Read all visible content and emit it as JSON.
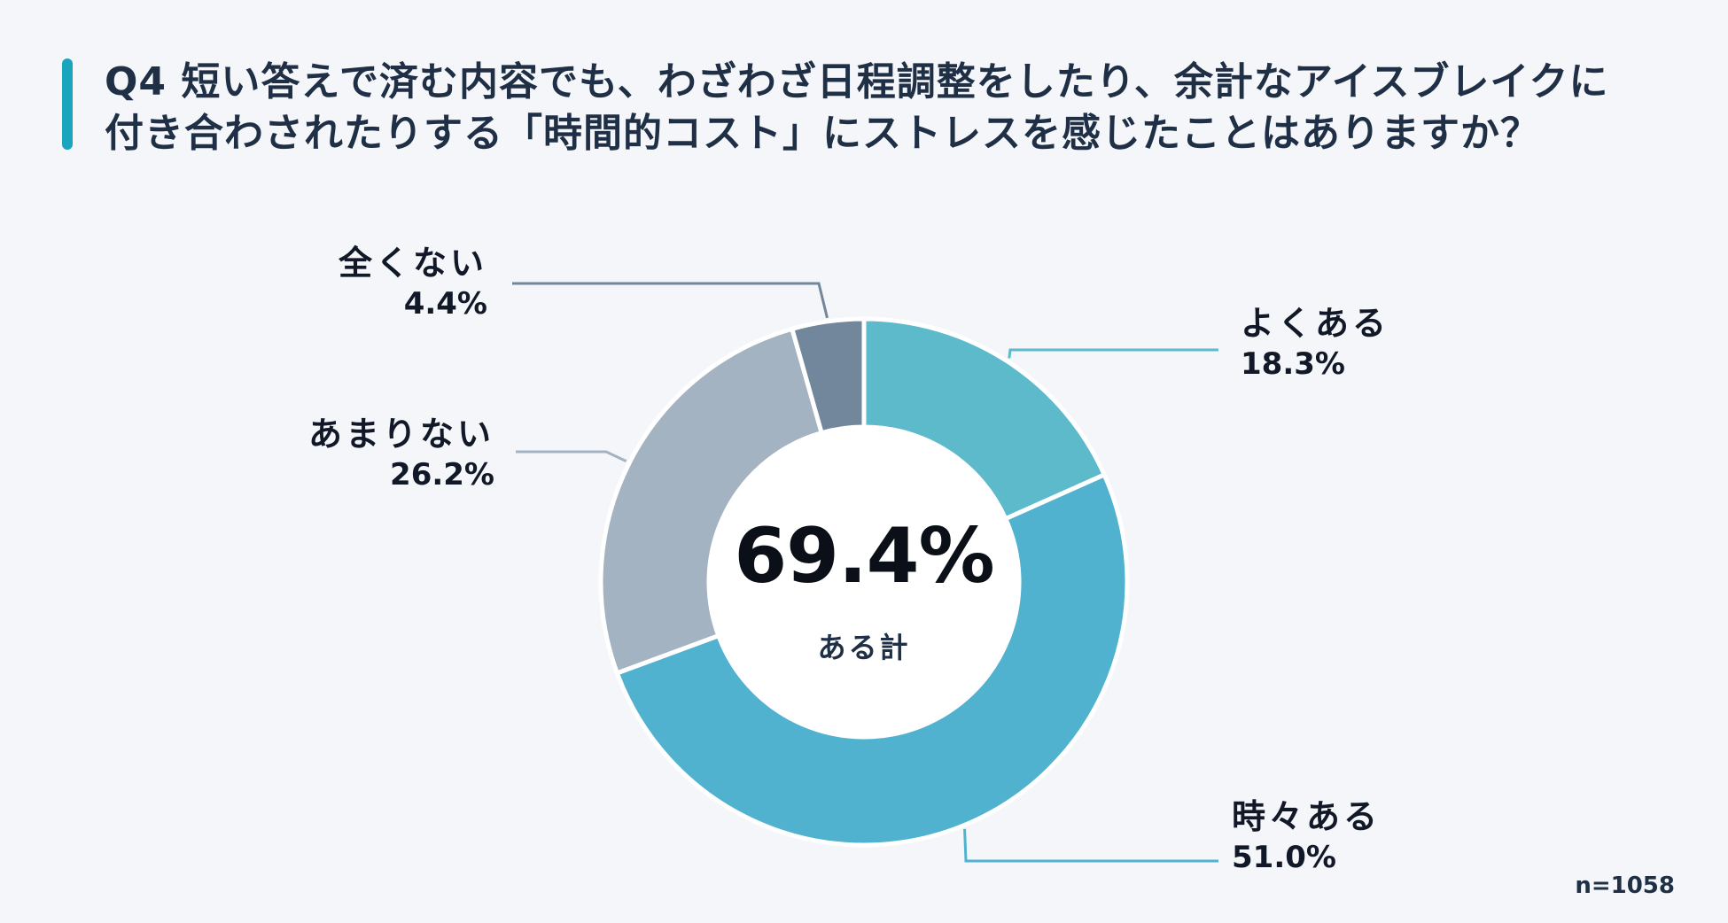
{
  "title": {
    "line1": "Q4  短い答えで済む内容でも、わざわざ日程調整をしたり、余計なアイスブレイクに",
    "line2": "付き合わされたりする「時間的コスト」にストレスを感じたことはありますか？"
  },
  "chart_data": {
    "type": "pie",
    "variant": "donut",
    "title": "Q4  短い答えで済む内容でも、わざわざ日程調整をしたり、余計なアイスブレイクに付き合わされたりする「時間的コスト」にストレスを感じたことはありますか？",
    "categories": [
      "よくある",
      "時々ある",
      "あまりない",
      "全くない"
    ],
    "values": [
      18.3,
      51.0,
      26.2,
      4.4
    ],
    "value_labels": [
      "18.3%",
      "51.0%",
      "26.2%",
      "4.4%"
    ],
    "colors": [
      "#5cbacb",
      "#50b2cf",
      "#a4b3c2",
      "#72879c"
    ],
    "center": {
      "value": "69.4%",
      "label": "ある計"
    },
    "sample_size": "n=1058"
  }
}
